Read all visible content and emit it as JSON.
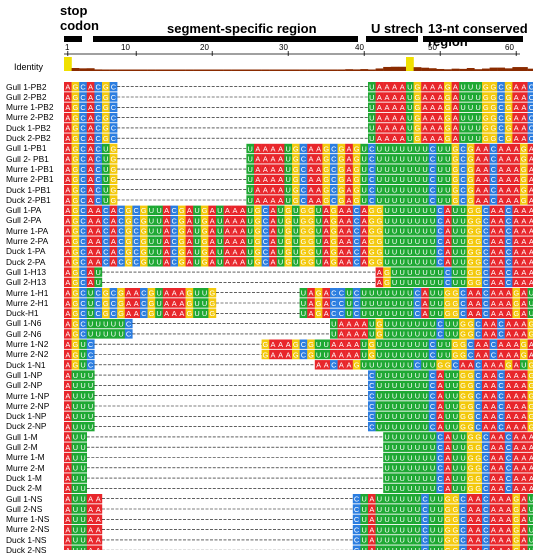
{
  "header": {
    "stop_codon_line1": "stop",
    "stop_codon_line2": "codon",
    "segment_region": "segment-specific region",
    "u_stretch": "U strech",
    "conserved_region": "13-nt conserved region"
  },
  "ruler": {
    "ticks": [
      "1",
      "10",
      "20",
      "30",
      "40",
      "50",
      "60"
    ]
  },
  "identity_label": "Identity",
  "colors": {
    "A": "#e8262b",
    "C": "#2b7de0",
    "G": "#f3c90d",
    "U": "#1ea833",
    "identity": "#f0e000",
    "identity_low": "#8a2b00"
  },
  "rows": [
    {
      "label": "Gull 1-PB2",
      "seq": "AGCACGC---------------------------------UAAAAUGAAAGAUUUGGCGAACAAAGAUG"
    },
    {
      "label": "Gull 2-PB2",
      "seq": "AGCACGC---------------------------------UAAAAUGAAAGAUUUGGCGAACAAAGAUG"
    },
    {
      "label": "Murre 1-PB2",
      "seq": "AGCACGC---------------------------------UAAAAUGAAAGAUUUGGCGAACAAAGAUG"
    },
    {
      "label": "Murre 2-PB2",
      "seq": "AGCACGC---------------------------------UAAAAUGAAAGAUUUGGCGAACAAAGAUG"
    },
    {
      "label": "Duck 1-PB2",
      "seq": "AGCACGC---------------------------------UAAAAUGAAAGAUUUGGCGAACAAAGAUG"
    },
    {
      "label": "Duck 2-PB2",
      "seq": "AGCACGC---------------------------------UAAAAUGAAAGAUUUGGCGAACAAAGAUG"
    },
    {
      "label": "Gull 1-PB1",
      "seq": "AGCACUG-----------------UAAAAUGCAAGCGAGUCUUUUUUUCUUGCGAACAAAGAUG"
    },
    {
      "label": "Gull 2- PB1",
      "seq": "AGCACUG-----------------UAAAAUGCAAGCGAGUCUUUUUUUCUUGCGAACAAAGAUG"
    },
    {
      "label": "Murre 1-PB1",
      "seq": "AGCACUG-----------------UAAAAUGCAAGCGAGUCUUUUUUUCUUGCGAACAAAGAUG"
    },
    {
      "label": "Murre 2-PB1",
      "seq": "AGCACUG-----------------UAAAAUGCAAGCGAGUCUUUUUUUCUUGCGAACAAAGAUG"
    },
    {
      "label": "Duck 1-PB1",
      "seq": "AGCACUG-----------------UAAAAUGCAAGCGAGUCUUUUUUUCUUGCGAACAAAGAUG"
    },
    {
      "label": "Duck 2-PB1",
      "seq": "AGCACUG-----------------UAAAAUGCAAGCGAGUCUUUUUUUCUUGCGAACAAAGAUG"
    },
    {
      "label": "Gull 1-PA",
      "seq": "AGCAACACGCGUUACGAUGAUAAAUGCAUGUGGUAGAACAGGUUUUUUUCAUUGGCAACAAAGAUG"
    },
    {
      "label": "Gull 2-PA",
      "seq": "AGCAACACGCGUUACGAUGAUAAAUGCAUGUGGUAGAACAGGUUUUUUUCAUUGGCAACAAAGAUG"
    },
    {
      "label": "Murre 1-PA",
      "seq": "AGCAACACGCGUUACGAUGAUAAAUGCAUGUGGUAGAACAGGUUUUUUUCAUUGGCAACAAAGAUG"
    },
    {
      "label": "Murre 2-PA",
      "seq": "AGCAACACGCGUUACGAUGAUAAAUGCAUGUGGUAGAACAGGUUUUUUUCAUUGGCAACAAAGAUG"
    },
    {
      "label": "Duck 1-PA",
      "seq": "AGCAACACGCGUUACGAUGAUAAAUGCAUGUGGUAGAACAGGUUUUUUUCAUUGGCAACAAAGAUG"
    },
    {
      "label": "Duck 2-PA",
      "seq": "AGCAACACGCGUUACGAUGAUAAAUGCAUGUGGUAGAACAGGUUUUUUUCAUUGGCAACAAAGAUG"
    },
    {
      "label": "Gull 1-H13",
      "seq": "AGCAU------------------------------------AGUUUUUUUCUUGGCAACAAAGAUG"
    },
    {
      "label": "Gull 2-H13",
      "seq": "AGCAU------------------------------------AGUUUUUUUCUUGGCAACAAAGAUG"
    },
    {
      "label": "Murre 1-H1",
      "seq": "AGCUCGCGAACGUAAAGUUG-----------UAGACCUCUUUUUUUCAUUGGCAACAAAGAUG"
    },
    {
      "label": "Murre 2-H1",
      "seq": "AGCUCGCGAACGUAAAGUUG-----------UAGACCUCUUUUUUUCAUUGGCAACAAAGAUG"
    },
    {
      "label": "Duck-H1",
      "seq": "AGCUCGCGAACGUAAAGUUG-----------UAGACCUCUUUUUUUCAUUGGCAACAAAGAUG"
    },
    {
      "label": "Gull 1-N6",
      "seq": "AGCUUUUUC--------------------------UAAAAUGUUUUUUUCUUGGCAACAAAGAUG"
    },
    {
      "label": "Gull 2-N6",
      "seq": "AGCUUUUUC--------------------------UAAAAUGUUUUUUUCUUGGCAACAAAGAUG"
    },
    {
      "label": "Murre 1-N2",
      "seq": "AGUC----------------------GAAAGCGUUAAAAUGUUUUUUUCUUGGCAACAAAGAUG"
    },
    {
      "label": "Murre 2-N2",
      "seq": "AGUC----------------------GAAAGCGUUAAAAUGUUUUUUUCUUGGCAACAAAGAUG"
    },
    {
      "label": "Duck 1-N1",
      "seq": "AGUC-----------------------------AACAAGUUUUUUUCUUGGCAACAAAGAUG"
    },
    {
      "label": "Gull 1-NP",
      "seq": "AUUU------------------------------------CUUUUUUUCAUUGGCAACAAAGAUG"
    },
    {
      "label": "Gull 2-NP",
      "seq": "AUUU------------------------------------CUUUUUUUCAUUGGCAACAAAGAUG"
    },
    {
      "label": "Murre 1-NP",
      "seq": "AUUU------------------------------------CUUUUUUUCAUUGGCAACAAAGAUG"
    },
    {
      "label": "Murre 2-NP",
      "seq": "AUUU------------------------------------CUUUUUUUCAUUGGCAACAAAGAUG"
    },
    {
      "label": "Duck 1-NP",
      "seq": "AUUU------------------------------------CUUUUUUUCAUUGGCAACAAAGAUG"
    },
    {
      "label": "Duck 2-NP",
      "seq": "AUUU------------------------------------CUUUUUUUCAUUGGCAACAAAGAUG"
    },
    {
      "label": "Gull 1-M",
      "seq": "AUU---------------------------------------UUUUUUUCAUUGGCAACAAAGAUG"
    },
    {
      "label": "Gull 2-M",
      "seq": "AUU---------------------------------------UUUUUUUCAUUGGCAACAAAGAUG"
    },
    {
      "label": "Murre 1-M",
      "seq": "AUU---------------------------------------UUUUUUUCAUUGGCAACAAAGAUG"
    },
    {
      "label": "Murre 2-M",
      "seq": "AUU---------------------------------------UUUUUUUCAUUGGCAACAAAGAUG"
    },
    {
      "label": "Duck 1-M",
      "seq": "AUU---------------------------------------UUUUUUUCAUUGGCAACAAAGAUG"
    },
    {
      "label": "Duck 2-M",
      "seq": "AUU---------------------------------------UUUUUUUCAUUGGCAACAAAGAUG"
    },
    {
      "label": "Gull 1-NS",
      "seq": "AUUAA---------------------------------CUAUUUUUUCUUGGCAACAAAGAUG"
    },
    {
      "label": "Gull 2-NS",
      "seq": "AUUAA---------------------------------CUAUUUUUUCUUGGCAACAAAGAUG"
    },
    {
      "label": "Murre 1-NS",
      "seq": "AUUAA---------------------------------CUAUUUUUUCUUGGCAACAAAGAUG"
    },
    {
      "label": "Murre 2-NS",
      "seq": "AUUAA---------------------------------CUAUUUUUUCUUGGCAACAAAGAUG"
    },
    {
      "label": "Duck 1-NS",
      "seq": "AUUAA---------------------------------CUAUUUUUUCUUGGCAACAAAGAUG"
    },
    {
      "label": "Duck 2-NS",
      "seq": "AUUAA---------------------------------CUAUUUUUUCUUGGCAACAAAGAUG"
    }
  ]
}
